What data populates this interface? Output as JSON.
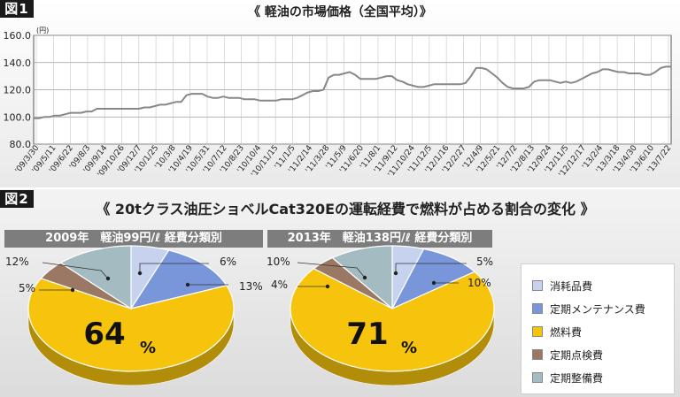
{
  "figure1": {
    "label": "図1",
    "title": "《 軽油の市場価格（全国平均）》"
  },
  "figure2": {
    "label": "図2",
    "title": "《 20tクラス油圧ショベルCat320Eの運転経費で燃料が占める割合の変化 》"
  },
  "chart_data": [
    {
      "type": "line",
      "title": "《 軽油の市場価格（全国平均）》",
      "ylabel": "(円)",
      "ylim": [
        80,
        160
      ],
      "yticks": [
        "80.0",
        "100.0",
        "120.0",
        "140.0",
        "160.0"
      ],
      "grid": true,
      "x_tick_labels": [
        "'09/3/30",
        "'09/5/11",
        "'09/6/22",
        "'09/8/3",
        "'09/9/14",
        "'09/10/26",
        "'09/12/7",
        "'10/1/25",
        "'10/3/8",
        "'10/4/19",
        "'10/5/31",
        "'10/7/12",
        "'10/8/23",
        "'10/10/4",
        "'10/11/15",
        "'11/1/5",
        "'11/2/14",
        "'11/3/28",
        "'11/5/9",
        "'11/6/20",
        "'11/8/1",
        "'11/9/12",
        "'11/10/24",
        "'11/12/5",
        "'12/1/16",
        "'12/2/27",
        "'12/4/9",
        "'12/5/21",
        "'12/7/2",
        "'12/8/13",
        "'12/9/24",
        "'12/11/5",
        "'12/12/17",
        "'13/2/4",
        "'13/3/18",
        "'13/4/30",
        "'13/6/10",
        "'13/7/22"
      ],
      "series": [
        {
          "name": "軽油価格",
          "values": [
            99,
            99,
            100,
            100,
            101,
            101,
            102,
            103,
            103,
            103,
            104,
            104,
            106,
            106,
            106,
            106,
            106,
            106,
            106,
            106,
            106,
            107,
            107,
            108,
            109,
            109,
            110,
            111,
            111,
            116,
            117,
            117,
            117,
            115,
            114,
            114,
            115,
            114,
            114,
            114,
            113,
            113,
            113,
            112,
            112,
            112,
            112,
            113,
            113,
            113,
            114,
            116,
            118,
            119,
            119,
            120,
            129,
            131,
            131,
            132,
            133,
            131,
            128,
            128,
            128,
            128,
            129,
            130,
            130,
            127,
            126,
            124,
            123,
            122,
            122,
            123,
            124,
            124,
            124,
            124,
            124,
            124,
            125,
            130,
            136,
            136,
            135,
            132,
            129,
            125,
            122,
            121,
            121,
            121,
            122,
            126,
            127,
            127,
            127,
            126,
            125,
            126,
            125,
            126,
            128,
            130,
            132,
            133,
            135,
            135,
            134,
            133,
            133,
            132,
            132,
            132,
            131,
            131,
            133,
            136,
            137,
            137
          ]
        }
      ]
    },
    {
      "type": "pie",
      "title": "2009年　軽油99円/ℓ 経費分類別",
      "slices": [
        {
          "label": "消耗品費",
          "value": 6,
          "color": "#c6d2ee"
        },
        {
          "label": "定期メンテナンス費",
          "value": 13,
          "color": "#7896d9"
        },
        {
          "label": "燃料費",
          "value": 64,
          "color": "#f6c40c"
        },
        {
          "label": "定期点検費",
          "value": 5,
          "color": "#9a7864"
        },
        {
          "label": "定期整備費",
          "value": 12,
          "color": "#a5bbc2"
        }
      ],
      "labels_pct": [
        "6%",
        "13%",
        "64",
        "%",
        "5%",
        "12%"
      ]
    },
    {
      "type": "pie",
      "title": "2013年　軽油138円/ℓ 経費分類別",
      "slices": [
        {
          "label": "消耗品費",
          "value": 5,
          "color": "#c6d2ee"
        },
        {
          "label": "定期メンテナンス費",
          "value": 10,
          "color": "#7896d9"
        },
        {
          "label": "燃料費",
          "value": 71,
          "color": "#f6c40c"
        },
        {
          "label": "定期点検費",
          "value": 4,
          "color": "#9a7864"
        },
        {
          "label": "定期整備費",
          "value": 10,
          "color": "#a5bbc2"
        }
      ],
      "labels_pct": [
        "5%",
        "10%",
        "71",
        "%",
        "4%",
        "10%"
      ]
    }
  ],
  "legend": [
    {
      "label": "消耗品費",
      "color": "#c6d2ee"
    },
    {
      "label": "定期メンテナンス費",
      "color": "#7896d9"
    },
    {
      "label": "燃料費",
      "color": "#f6c40c"
    },
    {
      "label": "定期点検費",
      "color": "#9a7864"
    },
    {
      "label": "定期整備費",
      "color": "#a5bbc2"
    }
  ]
}
